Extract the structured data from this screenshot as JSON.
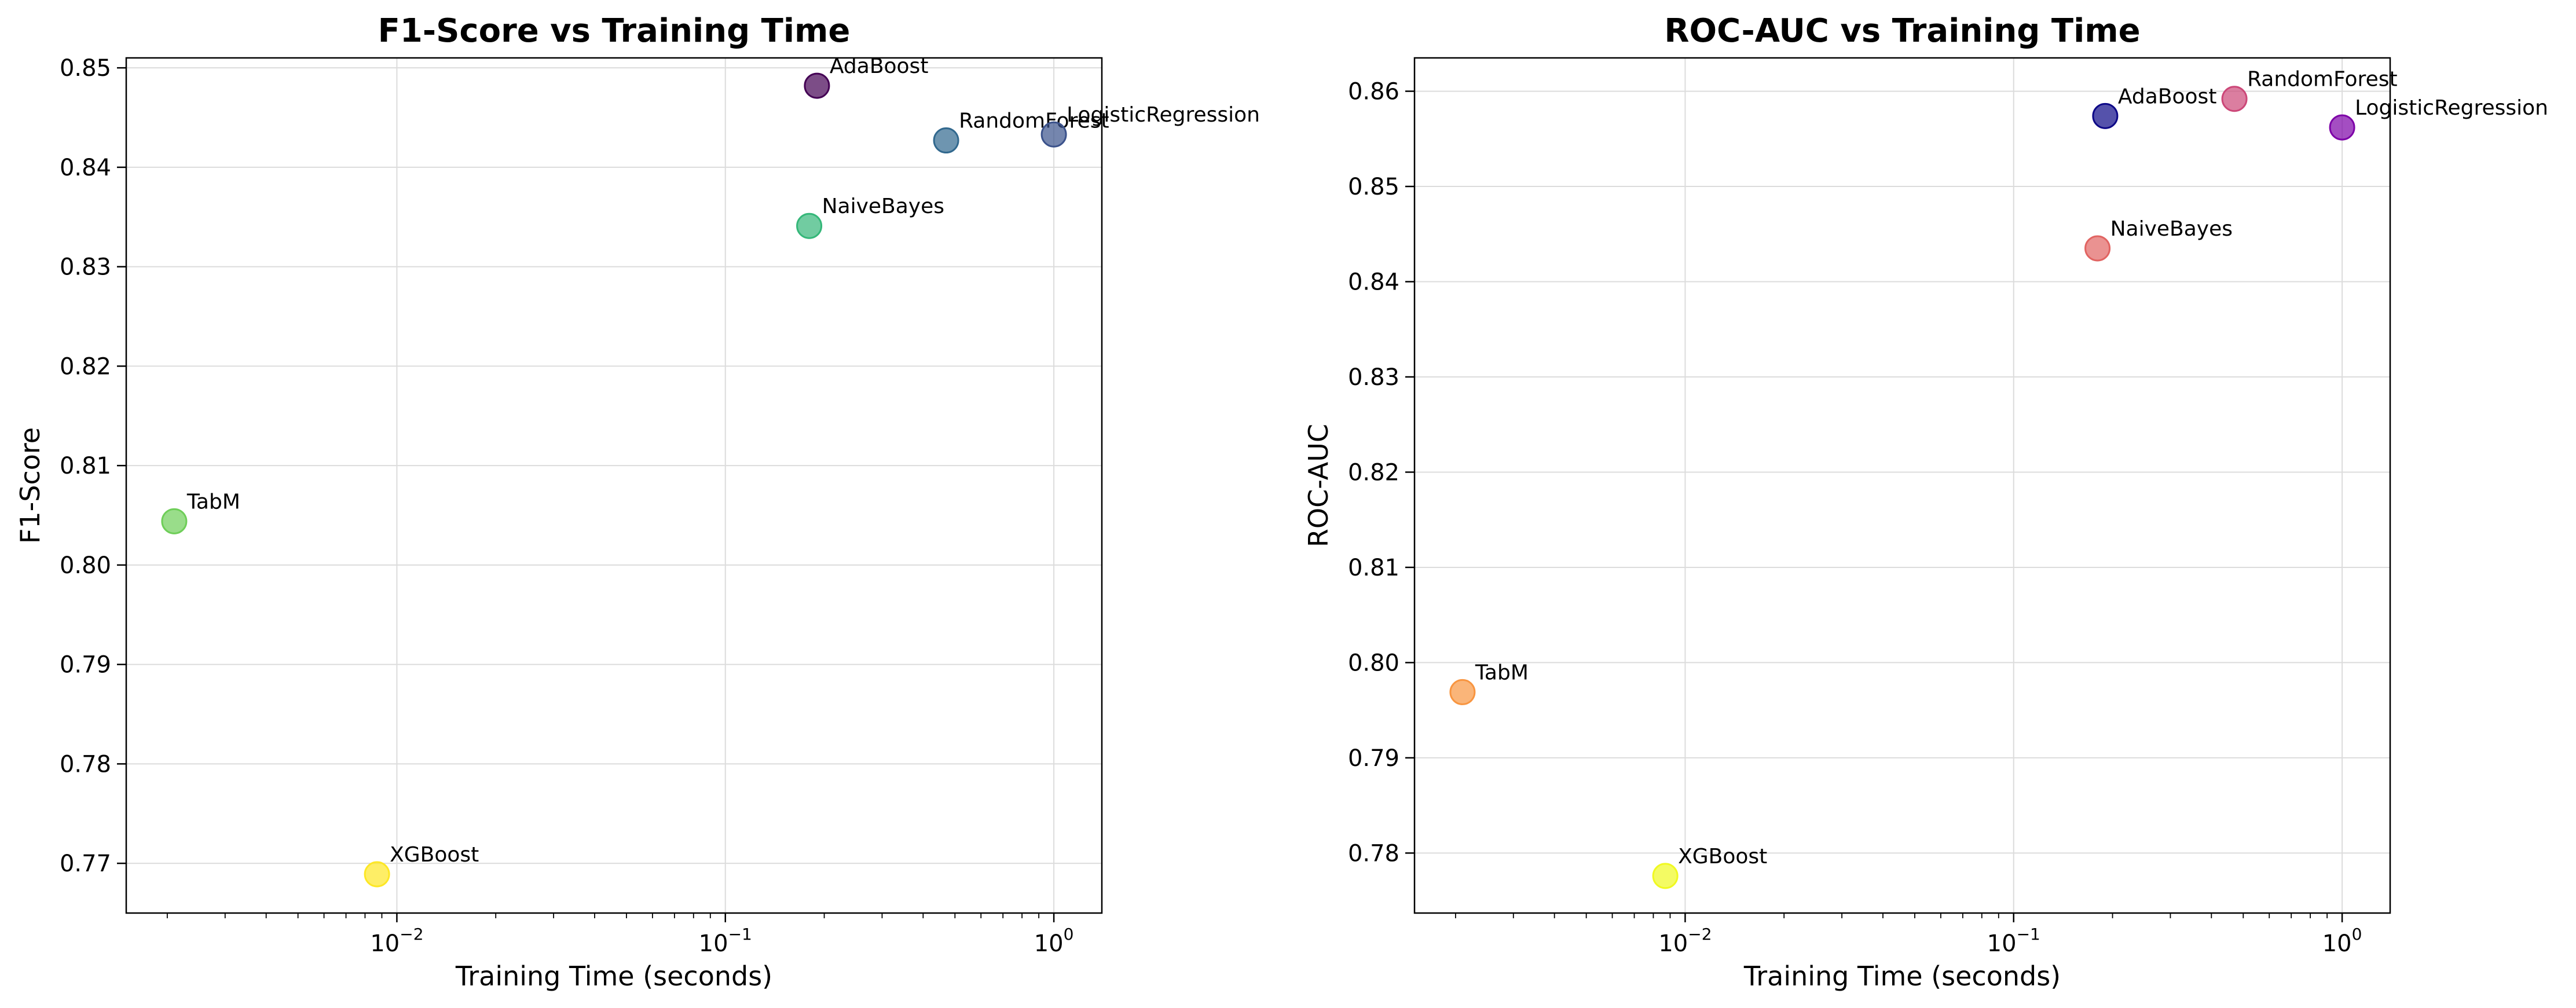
{
  "chart_data": [
    {
      "type": "scatter",
      "title": "F1-Score vs Training Time",
      "xlabel": "Training Time (seconds)",
      "ylabel": "F1-Score",
      "xscale": "log",
      "xlim": [
        0.0015,
        1.4
      ],
      "ylim": [
        0.765,
        0.851
      ],
      "xticks": [
        {
          "base": "10",
          "exp": "−2",
          "value": 0.01
        },
        {
          "base": "10",
          "exp": "−1",
          "value": 0.1
        },
        {
          "base": "10",
          "exp": "0",
          "value": 1
        }
      ],
      "yticks": [
        "0.77",
        "0.78",
        "0.79",
        "0.80",
        "0.81",
        "0.82",
        "0.83",
        "0.84",
        "0.85"
      ],
      "ytick_values": [
        0.77,
        0.78,
        0.79,
        0.8,
        0.81,
        0.82,
        0.83,
        0.84,
        0.85
      ],
      "grid": true,
      "points": [
        {
          "name": "AdaBoost",
          "x": 0.19,
          "y": 0.8482,
          "color": "#440154"
        },
        {
          "name": "RandomForest",
          "x": 0.47,
          "y": 0.8427,
          "color": "#31688e"
        },
        {
          "name": "LogisticRegression",
          "x": 1.0,
          "y": 0.8433,
          "color": "#3b528b"
        },
        {
          "name": "NaiveBayes",
          "x": 0.18,
          "y": 0.8341,
          "color": "#35b779"
        },
        {
          "name": "TabM",
          "x": 0.0021,
          "y": 0.8044,
          "color": "#6ece58"
        },
        {
          "name": "XGBoost",
          "x": 0.0087,
          "y": 0.7689,
          "color": "#fde725"
        }
      ]
    },
    {
      "type": "scatter",
      "title": "ROC-AUC vs Training Time",
      "xlabel": "Training Time (seconds)",
      "ylabel": "ROC-AUC",
      "xscale": "log",
      "xlim": [
        0.0015,
        1.4
      ],
      "ylim": [
        0.7737,
        0.8635
      ],
      "xticks": [
        {
          "base": "10",
          "exp": "−2",
          "value": 0.01
        },
        {
          "base": "10",
          "exp": "−1",
          "value": 0.1
        },
        {
          "base": "10",
          "exp": "0",
          "value": 1
        }
      ],
      "yticks": [
        "0.78",
        "0.79",
        "0.80",
        "0.81",
        "0.82",
        "0.83",
        "0.84",
        "0.85",
        "0.86"
      ],
      "ytick_values": [
        0.78,
        0.79,
        0.8,
        0.81,
        0.82,
        0.83,
        0.84,
        0.85,
        0.86
      ],
      "grid": true,
      "points": [
        {
          "name": "AdaBoost",
          "x": 0.19,
          "y": 0.8574,
          "color": "#0d0887"
        },
        {
          "name": "RandomForest",
          "x": 0.47,
          "y": 0.8592,
          "color": "#cc4778"
        },
        {
          "name": "LogisticRegression",
          "x": 1.0,
          "y": 0.8562,
          "color": "#7e03a8"
        },
        {
          "name": "NaiveBayes",
          "x": 0.18,
          "y": 0.8435,
          "color": "#e16462"
        },
        {
          "name": "TabM",
          "x": 0.0021,
          "y": 0.7969,
          "color": "#f89540"
        },
        {
          "name": "XGBoost",
          "x": 0.0087,
          "y": 0.7776,
          "color": "#f0f921"
        }
      ]
    }
  ]
}
